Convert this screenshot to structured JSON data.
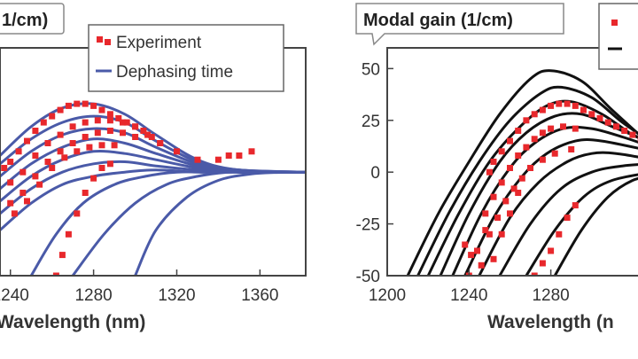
{
  "chart_data": [
    {
      "type": "line",
      "title": "1/cm)",
      "xlabel": "Wavelength (nm)",
      "ylabel": "",
      "xlim": [
        1235,
        1382
      ],
      "ylim": [
        -50,
        60
      ],
      "x_ticks": [
        "1240",
        "1280",
        "1320",
        "1360"
      ],
      "y_ticks": [],
      "grid": false,
      "legend_position": "top-right",
      "legend": [
        "Experiment",
        "Dephasing time"
      ],
      "series": [
        {
          "name": "Experiment",
          "kind": "scatter",
          "x": [
            1237,
            1240,
            1244,
            1248,
            1252,
            1256,
            1260,
            1264,
            1268,
            1272,
            1276,
            1280,
            1284,
            1288,
            1292,
            1296,
            1300,
            1304,
            1308,
            1312,
            1320,
            1330,
            1340,
            1345,
            1350,
            1356,
            1240,
            1246,
            1252,
            1258,
            1264,
            1270,
            1276,
            1282,
            1288,
            1294,
            1300,
            1306,
            1312,
            1240,
            1246,
            1252,
            1258,
            1264,
            1270,
            1276,
            1282,
            1288,
            1294,
            1300,
            1242,
            1248,
            1254,
            1260,
            1266,
            1272,
            1278,
            1284,
            1290,
            1262,
            1265,
            1268,
            1272,
            1276,
            1280,
            1284,
            1288
          ],
          "y": [
            2,
            5,
            10,
            15,
            20,
            24,
            27,
            30,
            32,
            33,
            33,
            32,
            30,
            28,
            26,
            24,
            22,
            20,
            17,
            14,
            10,
            6,
            6,
            8,
            8,
            10,
            -5,
            0,
            8,
            14,
            18,
            22,
            24,
            25,
            25,
            24,
            22,
            18,
            14,
            -15,
            -10,
            -2,
            5,
            10,
            14,
            17,
            19,
            20,
            19,
            17,
            -20,
            -14,
            -6,
            2,
            7,
            10,
            12,
            13,
            13,
            -50,
            -40,
            -30,
            -20,
            -10,
            -3,
            2,
            4
          ]
        },
        {
          "name": "Dephasing time",
          "kind": "lines",
          "curves": [
            {
              "x": [
                1235,
                1250,
                1265,
                1280,
                1295,
                1310,
                1330,
                1350,
                1382
              ],
              "y": [
                8,
                22,
                31,
                33,
                28,
                18,
                6,
                1,
                0
              ]
            },
            {
              "x": [
                1235,
                1250,
                1265,
                1280,
                1295,
                1310,
                1330,
                1350,
                1382
              ],
              "y": [
                4,
                16,
                24,
                27,
                24,
                15,
                5,
                1,
                0
              ]
            },
            {
              "x": [
                1235,
                1250,
                1265,
                1280,
                1295,
                1310,
                1330,
                1350,
                1382
              ],
              "y": [
                -2,
                10,
                18,
                21,
                19,
                12,
                4,
                1,
                0
              ]
            },
            {
              "x": [
                1235,
                1250,
                1265,
                1280,
                1295,
                1310,
                1330,
                1350,
                1382
              ],
              "y": [
                -8,
                4,
                12,
                16,
                14,
                9,
                3,
                0,
                0
              ]
            },
            {
              "x": [
                1235,
                1250,
                1265,
                1280,
                1295,
                1310,
                1330,
                1350,
                1382
              ],
              "y": [
                -14,
                -2,
                6,
                10,
                9,
                6,
                2,
                0,
                0
              ]
            },
            {
              "x": [
                1235,
                1250,
                1265,
                1280,
                1295,
                1310,
                1330,
                1350,
                1382
              ],
              "y": [
                -20,
                -8,
                0,
                4,
                5,
                3,
                1,
                0,
                0
              ]
            },
            {
              "x": [
                1235,
                1250,
                1265,
                1280,
                1295,
                1310,
                1330,
                1350,
                1382
              ],
              "y": [
                -28,
                -15,
                -6,
                -2,
                0,
                1,
                0,
                0,
                0
              ]
            },
            {
              "x": [
                1250,
                1262,
                1275,
                1290,
                1305,
                1320,
                1340,
                1360,
                1382
              ],
              "y": [
                -50,
                -30,
                -15,
                -6,
                -2,
                0,
                0,
                0,
                0
              ]
            },
            {
              "x": [
                1270,
                1285,
                1300,
                1315,
                1330,
                1345,
                1360,
                1382
              ],
              "y": [
                -50,
                -30,
                -15,
                -6,
                -2,
                0,
                0,
                0
              ]
            },
            {
              "x": [
                1300,
                1310,
                1325,
                1340,
                1355,
                1370,
                1382
              ],
              "y": [
                -50,
                -28,
                -12,
                -4,
                -1,
                0,
                0
              ]
            }
          ]
        }
      ]
    },
    {
      "type": "line",
      "title": "Modal gain (1/cm)",
      "xlabel": "Wavelength (n",
      "ylabel": "",
      "xlim": [
        1200,
        1330
      ],
      "ylim": [
        -50,
        60
      ],
      "x_ticks": [
        "1200",
        "1240",
        "1280"
      ],
      "y_ticks": [
        "50",
        "25",
        "0",
        "-25",
        "-50"
      ],
      "grid": false,
      "series": [
        {
          "name": "",
          "kind": "lines",
          "curves": [
            {
              "x": [
                1210,
                1225,
                1240,
                1255,
                1270,
                1280,
                1295,
                1310,
                1330
              ],
              "y": [
                -50,
                -20,
                5,
                28,
                45,
                49,
                44,
                30,
                12
              ]
            },
            {
              "x": [
                1215,
                1230,
                1245,
                1260,
                1275,
                1285,
                1300,
                1315,
                1330
              ],
              "y": [
                -50,
                -20,
                5,
                25,
                38,
                41,
                36,
                24,
                14
              ]
            },
            {
              "x": [
                1220,
                1235,
                1250,
                1265,
                1278,
                1290,
                1305,
                1320,
                1330
              ],
              "y": [
                -50,
                -20,
                5,
                22,
                32,
                34,
                28,
                18,
                14
              ]
            },
            {
              "x": [
                1226,
                1240,
                1255,
                1268,
                1282,
                1295,
                1310,
                1330
              ],
              "y": [
                -50,
                -20,
                5,
                19,
                27,
                28,
                22,
                14
              ]
            },
            {
              "x": [
                1232,
                1246,
                1260,
                1272,
                1286,
                1300,
                1315,
                1330
              ],
              "y": [
                -50,
                -20,
                2,
                14,
                21,
                21,
                17,
                12
              ]
            },
            {
              "x": [
                1238,
                1252,
                1266,
                1278,
                1292,
                1305,
                1330
              ],
              "y": [
                -50,
                -22,
                -2,
                9,
                15,
                15,
                10
              ]
            },
            {
              "x": [
                1245,
                1260,
                1274,
                1288,
                1300,
                1312,
                1330
              ],
              "y": [
                -50,
                -22,
                -5,
                5,
                9,
                9,
                6
              ]
            },
            {
              "x": [
                1255,
                1270,
                1285,
                1300,
                1315,
                1330
              ],
              "y": [
                -50,
                -25,
                -8,
                0,
                3,
                4
              ]
            },
            {
              "x": [
                1268,
                1282,
                1296,
                1310,
                1330
              ],
              "y": [
                -50,
                -28,
                -12,
                -4,
                0
              ]
            },
            {
              "x": [
                1282,
                1295,
                1308,
                1320,
                1330
              ],
              "y": [
                -50,
                -28,
                -12,
                -4,
                -2
              ]
            }
          ]
        },
        {
          "name": "",
          "kind": "scatter",
          "x": [
            1240,
            1244,
            1248,
            1250,
            1252,
            1256,
            1260,
            1264,
            1268,
            1272,
            1276,
            1280,
            1284,
            1288,
            1292,
            1296,
            1300,
            1304,
            1308,
            1312,
            1316,
            1320,
            1324,
            1328,
            1248,
            1252,
            1256,
            1260,
            1264,
            1268,
            1272,
            1276,
            1280,
            1286,
            1292,
            1250,
            1254,
            1258,
            1262,
            1266,
            1270,
            1276,
            1282,
            1290,
            1238,
            1241,
            1246,
            1252,
            1256,
            1260,
            1264,
            1272,
            1276,
            1280,
            1284,
            1288,
            1292
          ],
          "y": [
            -50,
            -38,
            -28,
            0,
            5,
            10,
            15,
            20,
            25,
            28,
            30,
            32,
            33,
            33,
            32,
            30,
            28,
            26,
            24,
            22,
            20,
            18,
            16,
            15,
            -20,
            -12,
            -5,
            2,
            8,
            12,
            16,
            19,
            21,
            22,
            21,
            -30,
            -22,
            -14,
            -8,
            -3,
            2,
            6,
            9,
            11,
            -35,
            -40,
            -45,
            -42,
            -30,
            -20,
            -10,
            -50,
            -44,
            -38,
            -30,
            -22,
            -16
          ]
        }
      ]
    }
  ]
}
